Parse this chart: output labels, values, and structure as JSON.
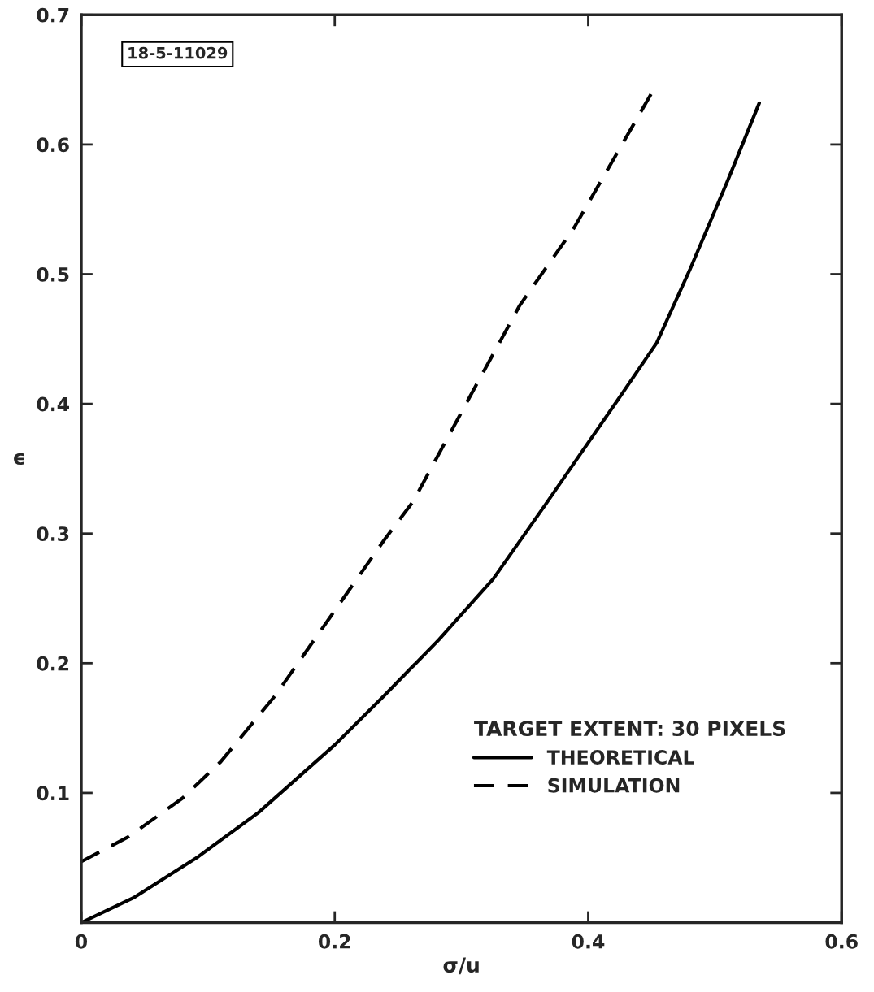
{
  "chart_data": {
    "type": "line",
    "xlabel": "σ/u",
    "ylabel": "ϵ",
    "xlim": [
      0,
      0.6
    ],
    "xticks": [
      0,
      0.2,
      0.4,
      0.6
    ],
    "ylim": [
      0,
      0.7
    ],
    "yticks": [
      0.1,
      0.2,
      0.3,
      0.4,
      0.5,
      0.6,
      0.7
    ],
    "legend_title": "TARGET EXTENT: 30 PIXELS",
    "legend": "lower right",
    "annotations": [
      "18-5-11029"
    ],
    "series": [
      {
        "name": "THEORETICAL",
        "color": "#000000",
        "line_style": "solid",
        "x": [
          0,
          0.041,
          0.0925,
          0.14,
          0.2,
          0.239,
          0.282,
          0.325,
          0.366,
          0.424,
          0.454,
          0.48,
          0.51,
          0.535
        ],
        "values": [
          0,
          0.019,
          0.051,
          0.085,
          0.137,
          0.175,
          0.218,
          0.265,
          0.322,
          0.404,
          0.447,
          0.503,
          0.572,
          0.632
        ]
      },
      {
        "name": "SIMULATION",
        "color": "#000000",
        "line_style": "dashed",
        "x": [
          0,
          0.037,
          0.08,
          0.11,
          0.153,
          0.196,
          0.239,
          0.262,
          0.303,
          0.346,
          0.389,
          0.419,
          0.452
        ],
        "values": [
          0.047,
          0.066,
          0.096,
          0.124,
          0.175,
          0.235,
          0.295,
          0.325,
          0.399,
          0.476,
          0.536,
          0.587,
          0.643
        ]
      }
    ]
  }
}
